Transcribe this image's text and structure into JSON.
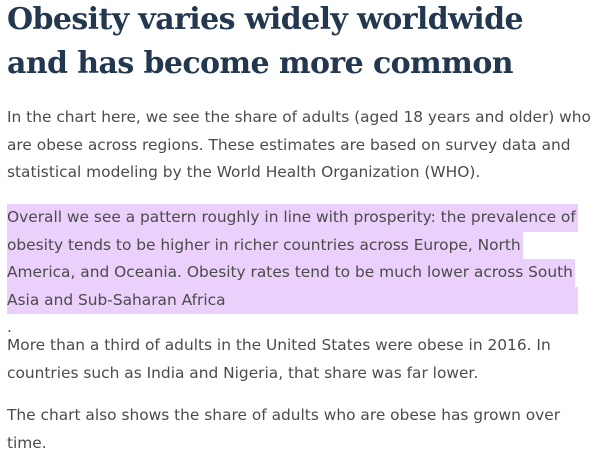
{
  "title": {
    "line1": "Obesity varies widely worldwide",
    "line2": "and has become more common"
  },
  "paragraphs": {
    "p1": [
      "In the chart here, we see the share of adults (aged 18 years and older) who",
      "are obese across regions. These estimates are based on survey data and",
      "statistical modeling by the World Health Organization (WHO)."
    ],
    "p2": [
      "Overall we see a pattern roughly in line with prosperity: the prevalence of",
      "obesity tends to be higher in richer countries across Europe, North",
      "America, and Oceania. Obesity rates tend to be much lower across South",
      "Asia and Sub-Saharan Africa",
      "."
    ],
    "p3": [
      "More than a third of adults in the United States were obese in 2016. In",
      "countries such as India and Nigeria, that share was far lower."
    ],
    "p4": [
      "The chart also shows the share of adults who are obese has grown over",
      "time."
    ]
  },
  "colors": {
    "title": "#23384f",
    "text": "#4b4b4b",
    "highlight": "#ead0fb"
  }
}
